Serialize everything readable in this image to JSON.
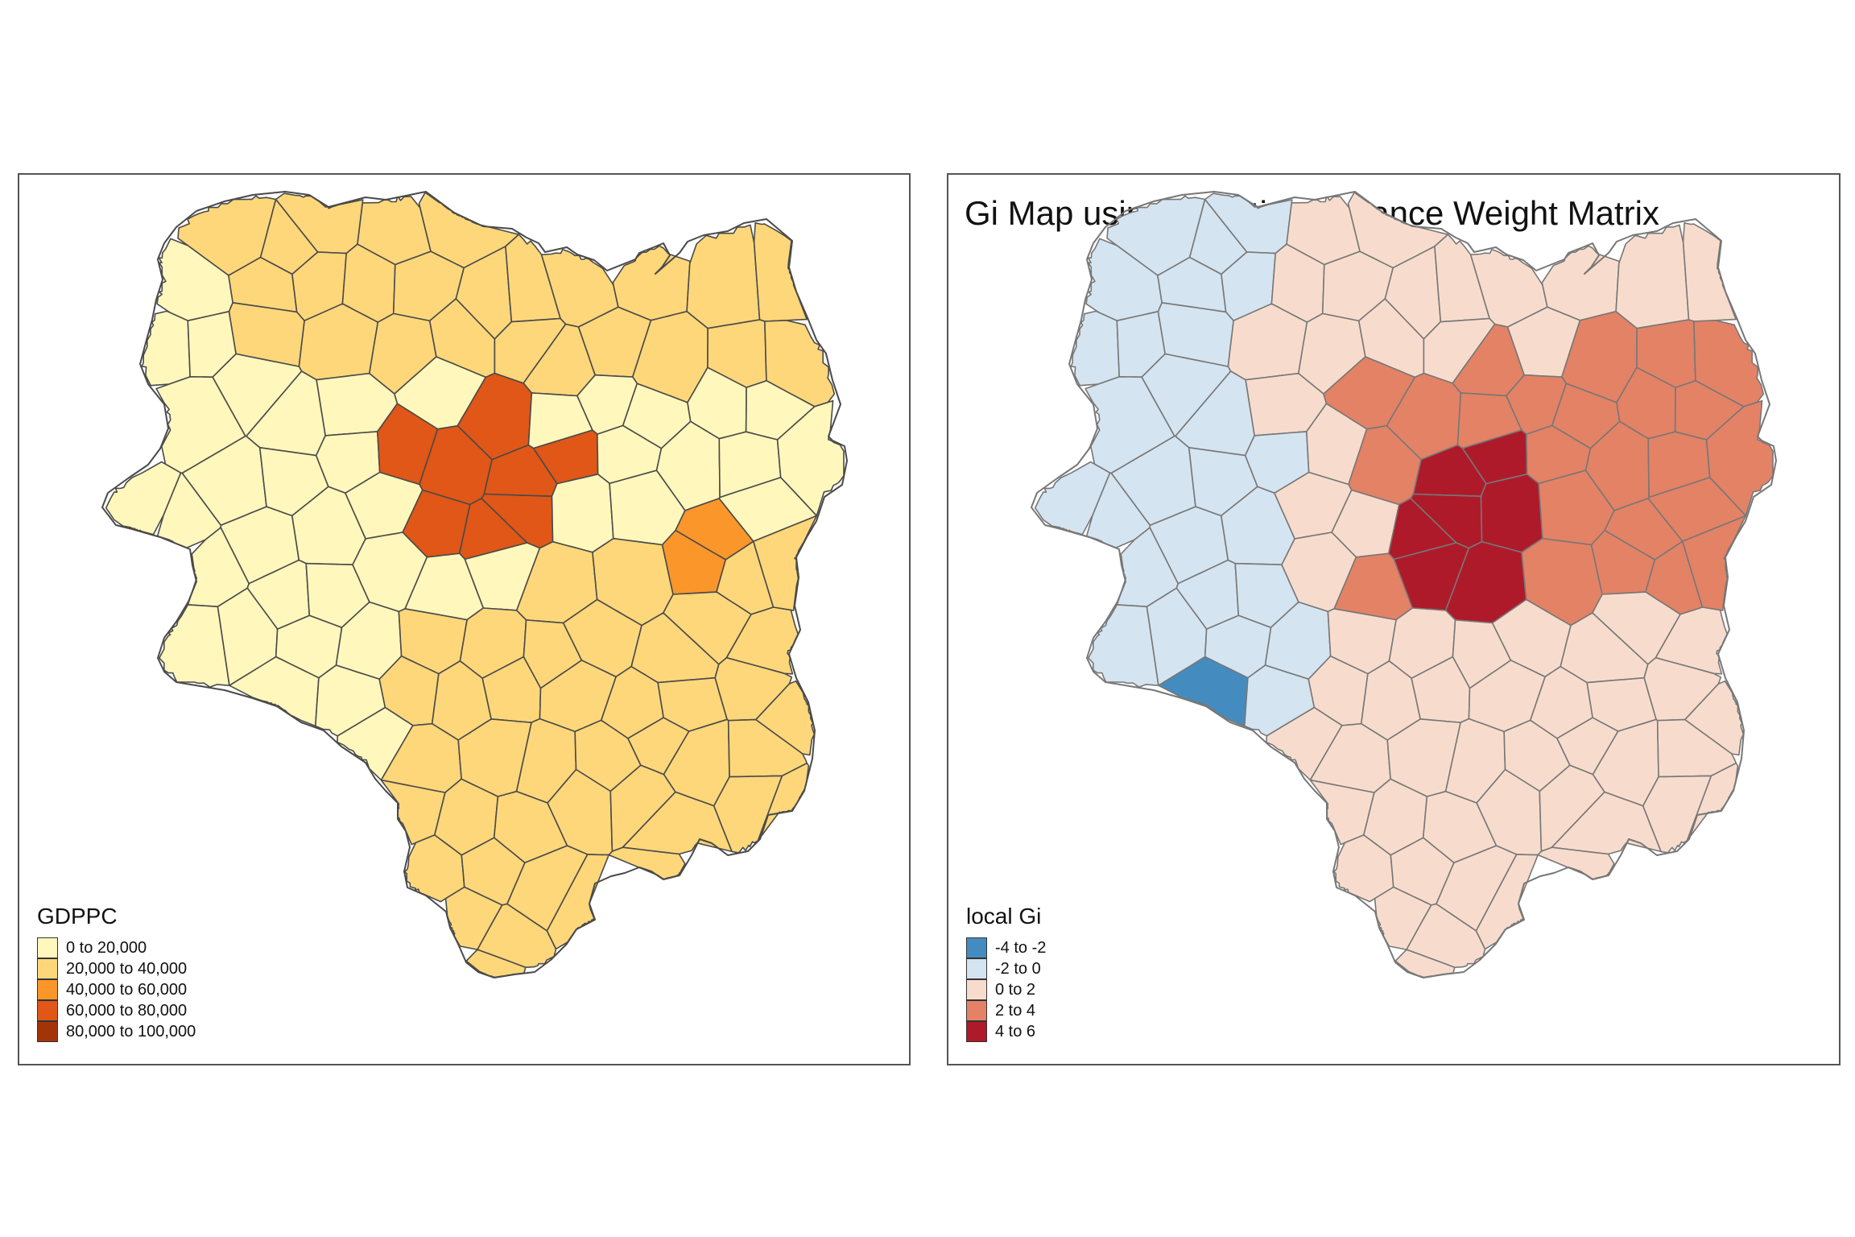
{
  "left_map": {
    "title": "",
    "legend": {
      "title": "GDPPC",
      "items": [
        {
          "label": "0 to 20,000",
          "color": "#fff7bc"
        },
        {
          "label": "20,000 to 40,000",
          "color": "#fdd77a"
        },
        {
          "label": "40,000 to 60,000",
          "color": "#fb962b"
        },
        {
          "label": "60,000 to 80,000",
          "color": "#e05717"
        },
        {
          "label": "80,000 to 100,000",
          "color": "#a33407"
        }
      ]
    },
    "border_color": "#555555"
  },
  "right_map": {
    "title": "Gi Map using Adaptive Distance Weight Matrix",
    "legend": {
      "title": "local Gi",
      "items": [
        {
          "label": "-4 to -2",
          "color": "#448cc0"
        },
        {
          "label": "-2 to 0",
          "color": "#d4e4f0"
        },
        {
          "label": "0 to 2",
          "color": "#f7dccd"
        },
        {
          "label": "2 to 4",
          "color": "#e48266"
        },
        {
          "label": "4 to 6",
          "color": "#ae1a2a"
        }
      ]
    },
    "border_color": "#777777"
  }
}
